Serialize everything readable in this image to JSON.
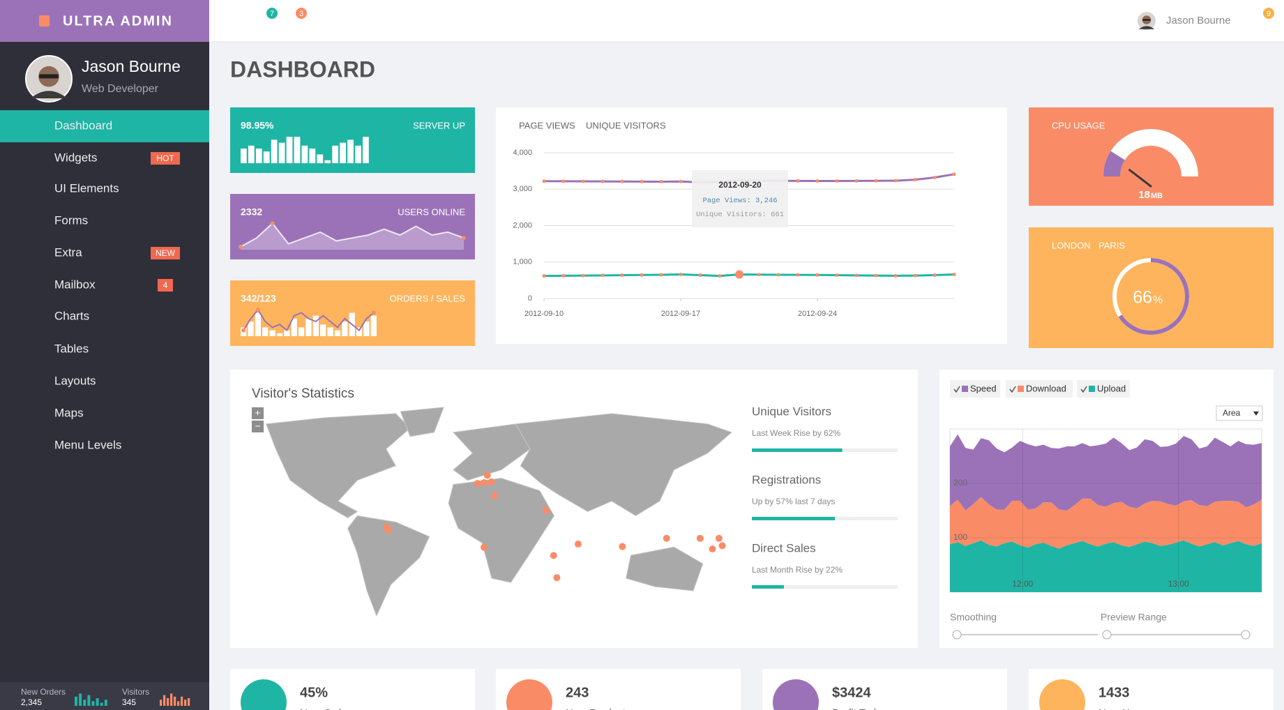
{
  "brand": "ULTRA ADMIN",
  "topbar": {
    "badges": [
      "7",
      "3"
    ],
    "user": "Jason Bourne",
    "notifications": "9"
  },
  "profile": {
    "name": "Jason Bourne",
    "role": "Web Developer"
  },
  "menu": [
    {
      "label": "Dashboard"
    },
    {
      "label": "Widgets",
      "badge": "HOT"
    },
    {
      "label": "UI Elements"
    },
    {
      "label": "Forms"
    },
    {
      "label": "Extra",
      "badge": "NEW"
    },
    {
      "label": "Mailbox",
      "badge": "4"
    },
    {
      "label": "Charts"
    },
    {
      "label": "Tables"
    },
    {
      "label": "Layouts"
    },
    {
      "label": "Maps"
    },
    {
      "label": "Menu Levels"
    }
  ],
  "sidebar_stats": [
    {
      "label": "New Orders",
      "value": "2,345",
      "bars": [
        6,
        8,
        4,
        7,
        3,
        5,
        2,
        4
      ],
      "ylim": [
        0,
        10
      ],
      "color": "#1fb5a5"
    },
    {
      "label": "Visitors",
      "value": "345",
      "bars": [
        4,
        7,
        5,
        8,
        6,
        3,
        6,
        4,
        5
      ],
      "ylim": [
        0,
        10
      ],
      "color": "#f98c67"
    }
  ],
  "page_title": "DASHBOARD",
  "tiles": [
    {
      "value": "98.95%",
      "label": "SERVER UP",
      "color": "#1fb5a5",
      "bars": [
        5,
        6,
        5,
        4,
        8,
        7,
        9,
        9,
        6,
        5,
        3,
        1,
        6,
        7,
        8,
        6,
        9
      ],
      "ylim": [
        0,
        10
      ]
    },
    {
      "value": "2332",
      "label": "USERS ONLINE",
      "color": "#9b72b8",
      "line": [
        1,
        4,
        9,
        2,
        4,
        6,
        3,
        4,
        5,
        7,
        5,
        8,
        5,
        6,
        4
      ],
      "ylim": [
        0,
        10
      ]
    },
    {
      "value": "342/123",
      "label": "ORDERS / SALES",
      "color": "#fdb45c",
      "bars": [
        3,
        5,
        8,
        3,
        2,
        1,
        2,
        6,
        3,
        6,
        7,
        4,
        3,
        2,
        5,
        8,
        3,
        5,
        7
      ],
      "line": [
        2,
        6,
        9,
        5,
        3,
        4,
        2,
        7,
        8,
        6,
        5,
        7,
        5,
        3,
        6,
        4,
        2,
        6,
        8
      ],
      "ylim": [
        0,
        10
      ]
    }
  ],
  "chart_data": [
    {
      "type": "line",
      "x": [
        "2012-09-10",
        "2012-09-11",
        "2012-09-12",
        "2012-09-13",
        "2012-09-14",
        "2012-09-15",
        "2012-09-16",
        "2012-09-17",
        "2012-09-18",
        "2012-09-19",
        "2012-09-20",
        "2012-09-21",
        "2012-09-22",
        "2012-09-23",
        "2012-09-24",
        "2012-09-25",
        "2012-09-26",
        "2012-09-27",
        "2012-09-28",
        "2012-09-29",
        "2012-09-30",
        "2012-10-01"
      ],
      "xlim": [
        "2012-09-10",
        "2012-10-01"
      ],
      "xticks": [
        "2012-09-10",
        "2012-09-17",
        "2012-09-24"
      ],
      "series": [
        {
          "name": "PAGE VIEWS",
          "color": "#9b72b8",
          "values": [
            3220,
            3218,
            3215,
            3212,
            3210,
            3208,
            3205,
            3210,
            3190,
            3200,
            3246,
            3235,
            3230,
            3228,
            3225,
            3225,
            3228,
            3230,
            3232,
            3260,
            3320,
            3410
          ]
        },
        {
          "name": "UNIQUE VISITORS",
          "color": "#1fb5a5",
          "values": [
            620,
            625,
            630,
            635,
            640,
            645,
            650,
            660,
            640,
            620,
            661,
            655,
            650,
            648,
            645,
            640,
            635,
            630,
            625,
            630,
            640,
            660
          ]
        }
      ],
      "ylim": [
        0,
        4000
      ],
      "yticks": [
        0,
        {
          "value": 1000,
          "label": "1,000"
        },
        {
          "value": 2000,
          "label": "2,000"
        },
        {
          "value": 3000,
          "label": "3,000"
        },
        {
          "value": 4000,
          "label": "4,000"
        }
      ],
      "grid": true,
      "tooltip": {
        "title": "2012-09-20",
        "lines": [
          "Page Views: 3,246",
          "Unique Visitors: 661"
        ]
      }
    },
    {
      "type": "area",
      "stacked": true,
      "x": [
        692,
        695,
        698,
        701,
        704,
        707,
        710,
        713,
        716,
        719,
        722,
        725,
        728,
        731,
        734,
        737,
        740,
        743,
        746,
        749,
        752,
        755,
        758,
        761,
        764,
        767,
        770,
        773,
        776,
        779,
        782,
        785,
        788,
        791,
        794,
        797,
        800,
        803,
        806,
        809,
        812
      ],
      "xlim": [
        692,
        812
      ],
      "xticks": [
        {
          "value": 720,
          "label": "12:00"
        },
        {
          "value": 780,
          "label": "13:00"
        }
      ],
      "series": [
        {
          "name": "Speed",
          "color": "#9b72b8",
          "values": [
            110,
            120,
            115,
            100,
            108,
            118,
            112,
            105,
            98,
            110,
            120,
            114,
            106,
            100,
            112,
            118,
            108,
            102,
            96,
            110,
            116,
            120,
            108,
            104,
            112,
            118,
            110,
            100,
            106,
            114,
            120,
            112,
            104,
            110,
            118,
            108,
            100,
            112,
            116,
            110,
            104
          ]
        },
        {
          "name": "Download",
          "color": "#f98c67",
          "values": [
            70,
            78,
            65,
            72,
            80,
            74,
            68,
            62,
            75,
            82,
            70,
            66,
            74,
            80,
            72,
            64,
            70,
            78,
            84,
            76,
            68,
            72,
            80,
            74,
            66,
            70,
            78,
            82,
            75,
            68,
            72,
            80,
            76,
            70,
            74,
            82,
            78,
            72,
            68,
            76,
            80
          ]
        },
        {
          "name": "Upload",
          "color": "#1fb5a5",
          "values": [
            88,
            92,
            85,
            90,
            95,
            87,
            84,
            90,
            93,
            86,
            82,
            88,
            91,
            85,
            80,
            86,
            90,
            94,
            88,
            84,
            89,
            92,
            86,
            83,
            88,
            93,
            90,
            85,
            87,
            91,
            95,
            89,
            84,
            88,
            92,
            86,
            90,
            94,
            88,
            85,
            90
          ]
        }
      ],
      "ylim": [
        0,
        300
      ],
      "yticks": [
        100,
        200
      ],
      "mode": "Area",
      "controls": [
        "Smoothing",
        "Preview Range"
      ]
    }
  ],
  "cpu": {
    "title": "CPU USAGE",
    "value": 18,
    "unit": "MB",
    "range": [
      0,
      100
    ],
    "color": "#f98c67"
  },
  "weather": {
    "tabs": [
      "LONDON",
      "PARIS"
    ],
    "value": 66,
    "unit": "%",
    "color": "#fdb45c"
  },
  "visitors": {
    "title": "Visitor's Statistics",
    "zoom": [
      "+",
      "−"
    ],
    "stats": [
      {
        "title": "Unique Visitors",
        "text": "Last Week Rise by 62%",
        "progress": 62
      },
      {
        "title": "Registrations",
        "text": "Up by 57% last 7 days",
        "progress": 57
      },
      {
        "title": "Direct Sales",
        "text": "Last Month Rise by 22%",
        "progress": 22
      }
    ]
  },
  "summary": [
    {
      "value": "45%",
      "label": "New Orders",
      "color": "#1fb5a5"
    },
    {
      "value": "243",
      "label": "New Products",
      "color": "#f98c67"
    },
    {
      "value": "$3424",
      "label": "Profit Today",
      "color": "#9b72b8"
    },
    {
      "value": "1433",
      "label": "New Users",
      "color": "#fdb45c"
    }
  ]
}
